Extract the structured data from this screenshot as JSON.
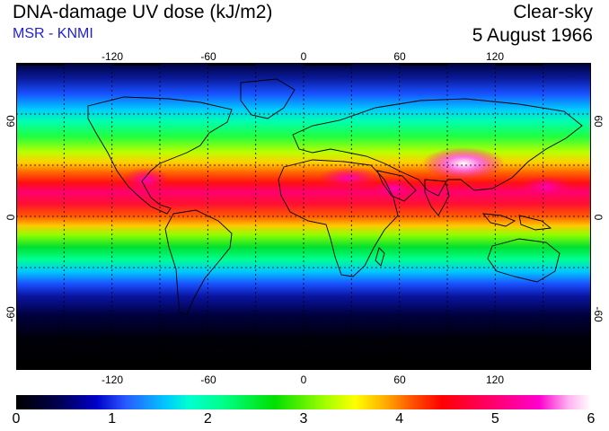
{
  "header": {
    "title": "DNA-damage UV dose (kJ/m2)",
    "subtitle": "MSR - KNMI",
    "sky": "Clear-sky",
    "date": "5 August 1966"
  },
  "map": {
    "lon_ticks": [
      "-120",
      "-60",
      "0",
      "60",
      "120"
    ],
    "lat_ticks": [
      "60",
      "0",
      "-60"
    ],
    "lon_range": [
      -180,
      180
    ],
    "lat_range": [
      -90,
      90
    ],
    "grid": true
  },
  "colorbar": {
    "min": 0,
    "max": 6,
    "tick_labels": [
      "0",
      "1",
      "2",
      "3",
      "4",
      "5",
      "6"
    ]
  },
  "colors": {
    "subtitle": "#1f1fd6",
    "ocean_low": "#000000",
    "peak": "#ffffff"
  }
}
